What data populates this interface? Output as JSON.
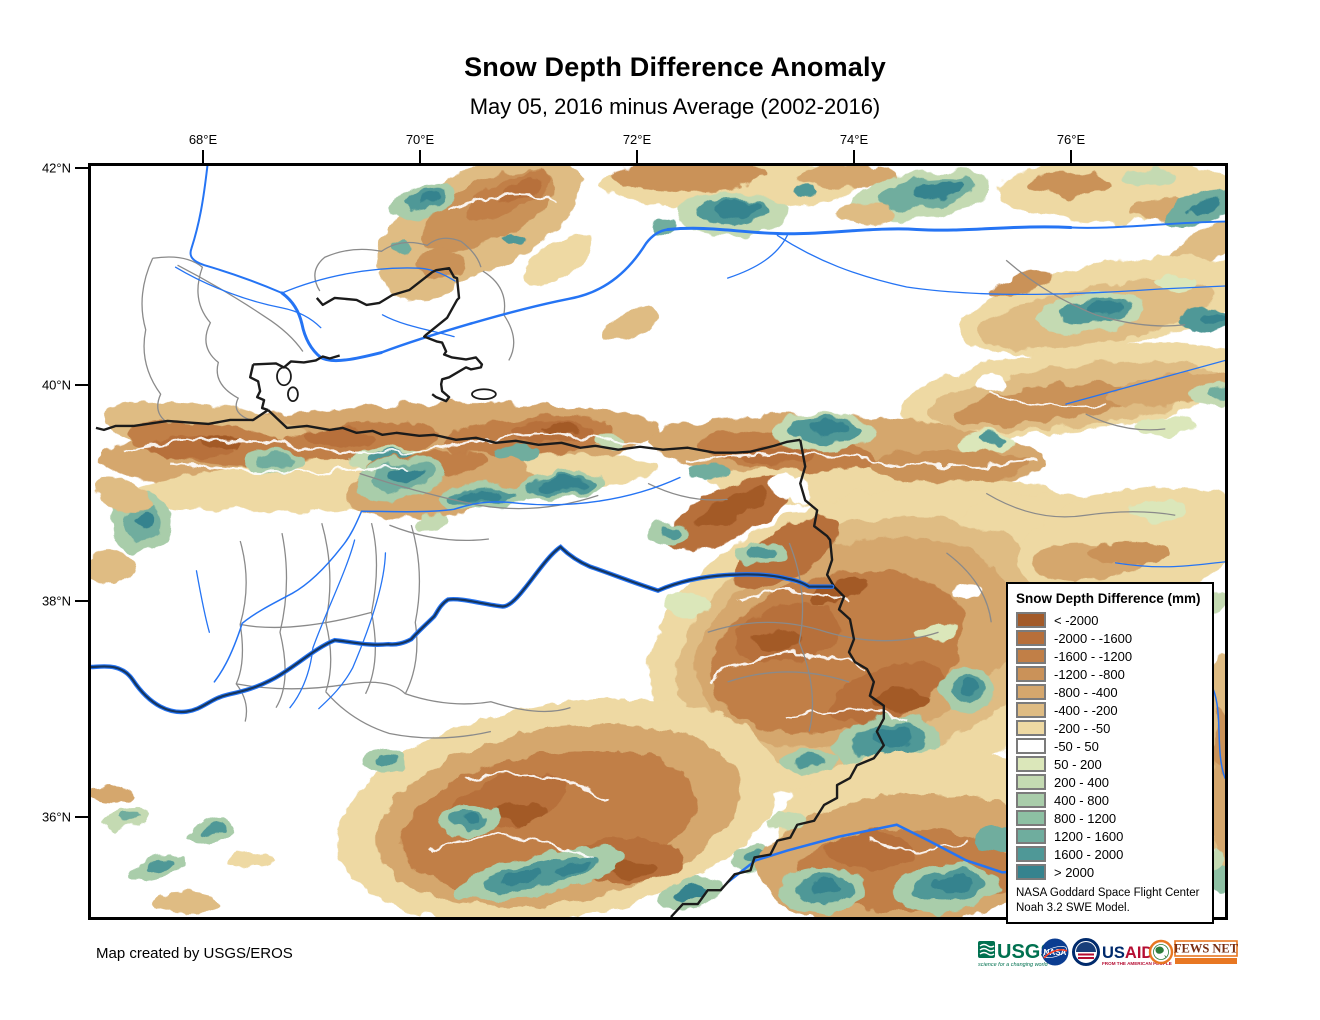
{
  "page": {
    "title": "Snow Depth Difference Anomaly",
    "subtitle": "May 05, 2016 minus Average (2002-2016)",
    "footer_credit": "Map created by USGS/EROS"
  },
  "map": {
    "x_ticks": [
      "68°E",
      "70°E",
      "72°E",
      "74°E",
      "76°E"
    ],
    "y_ticks": [
      "42°N",
      "40°N",
      "38°N",
      "36°N"
    ]
  },
  "legend": {
    "title": "Snow Depth Difference (mm)",
    "items": [
      {
        "label": "< -2000",
        "color": "#a35a28"
      },
      {
        "label": "-2000 - -1600",
        "color": "#b76f3a"
      },
      {
        "label": "-1600 - -1200",
        "color": "#c17f47"
      },
      {
        "label": "-1200 - -800",
        "color": "#ca9259"
      },
      {
        "label": "-800 - -400",
        "color": "#d5a76d"
      },
      {
        "label": "-400 - -200",
        "color": "#dfbc83"
      },
      {
        "label": "-200 - -50",
        "color": "#eed9a3"
      },
      {
        "label": "-50 - 50",
        "color": "#ffffff"
      },
      {
        "label": "50 - 200",
        "color": "#dbe7ba"
      },
      {
        "label": "200 - 400",
        "color": "#c4dab2"
      },
      {
        "label": "400 - 800",
        "color": "#a9cdaa"
      },
      {
        "label": "800 - 1200",
        "color": "#8dc0a3"
      },
      {
        "label": "1200 - 1600",
        "color": "#6fad9e"
      },
      {
        "label": "1600 - 2000",
        "color": "#4f9897"
      },
      {
        "label": "> 2000",
        "color": "#35838e"
      }
    ],
    "credit_line1": "NASA Goddard Space Flight Center",
    "credit_line2": "Noah 3.2 SWE Model."
  },
  "logos": {
    "usgs": {
      "name": "USGS",
      "tagline": "science for a changing world"
    },
    "nasa": {
      "name": "NASA"
    },
    "usaid": {
      "name_us": "US",
      "name_aid": "AID",
      "tagline": "FROM THE AMERICAN PEOPLE"
    },
    "fewsnet": {
      "name": "FEWS NET"
    }
  }
}
